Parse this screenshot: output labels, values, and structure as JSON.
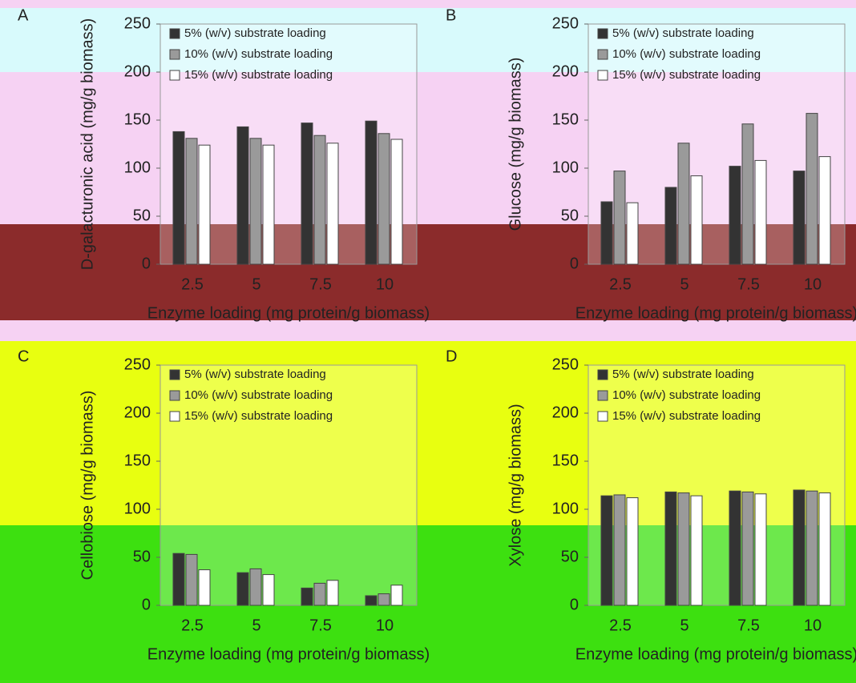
{
  "chart_data": [
    {
      "type": "bar",
      "panel": "A",
      "y_label": "D-galacturonic acid (mg/g biomass)",
      "x_label": "Enzyme loading (mg protein/g biomass)",
      "categories": [
        "2.5",
        "5",
        "7.5",
        "10"
      ],
      "series": [
        {
          "name": "5% (w/v) substrate loading",
          "color": "#333333",
          "values": [
            138,
            143,
            147,
            149
          ]
        },
        {
          "name": "10% (w/v) substrate loading",
          "color": "#9a9a9a",
          "values": [
            131,
            131,
            134,
            136
          ]
        },
        {
          "name": "15% (w/v) substrate loading",
          "color": "#ffffff",
          "values": [
            124,
            124,
            126,
            130
          ]
        }
      ],
      "ylim": [
        0,
        250
      ],
      "yticks": [
        0,
        50,
        100,
        150,
        200,
        250
      ]
    },
    {
      "type": "bar",
      "panel": "B",
      "y_label": "Glucose (mg/g biomass)",
      "x_label": "Enzyme loading (mg protein/g biomass)",
      "categories": [
        "2.5",
        "5",
        "7.5",
        "10"
      ],
      "series": [
        {
          "name": "5% (w/v) substrate loading",
          "color": "#333333",
          "values": [
            65,
            80,
            102,
            97
          ]
        },
        {
          "name": "10% (w/v) substrate loading",
          "color": "#9a9a9a",
          "values": [
            97,
            126,
            146,
            157
          ]
        },
        {
          "name": "15% (w/v) substrate loading",
          "color": "#ffffff",
          "values": [
            64,
            92,
            108,
            112
          ]
        }
      ],
      "ylim": [
        0,
        250
      ],
      "yticks": [
        0,
        50,
        100,
        150,
        200,
        250
      ]
    },
    {
      "type": "bar",
      "panel": "C",
      "y_label": "Cellobiose (mg/g biomass)",
      "x_label": "Enzyme loading (mg protein/g biomass)",
      "categories": [
        "2.5",
        "5",
        "7.5",
        "10"
      ],
      "series": [
        {
          "name": "5% (w/v) substrate loading",
          "color": "#333333",
          "values": [
            54,
            34,
            18,
            10
          ]
        },
        {
          "name": "10% (w/v) substrate loading",
          "color": "#9a9a9a",
          "values": [
            53,
            38,
            23,
            12
          ]
        },
        {
          "name": "15% (w/v) substrate loading",
          "color": "#ffffff",
          "values": [
            37,
            32,
            26,
            21
          ]
        }
      ],
      "ylim": [
        0,
        250
      ],
      "yticks": [
        0,
        50,
        100,
        150,
        200,
        250
      ]
    },
    {
      "type": "bar",
      "panel": "D",
      "y_label": "Xylose (mg/g biomass)",
      "x_label": "Enzyme loading (mg protein/g biomass)",
      "categories": [
        "2.5",
        "5",
        "7.5",
        "10"
      ],
      "series": [
        {
          "name": "5% (w/v) substrate loading",
          "color": "#333333",
          "values": [
            114,
            118,
            119,
            120
          ]
        },
        {
          "name": "10% (w/v) substrate loading",
          "color": "#9a9a9a",
          "values": [
            115,
            117,
            118,
            119
          ]
        },
        {
          "name": "15% (w/v) substrate loading",
          "color": "#ffffff",
          "values": [
            112,
            114,
            116,
            117
          ]
        }
      ],
      "ylim": [
        0,
        250
      ],
      "yticks": [
        0,
        50,
        100,
        150,
        200,
        250
      ]
    }
  ]
}
